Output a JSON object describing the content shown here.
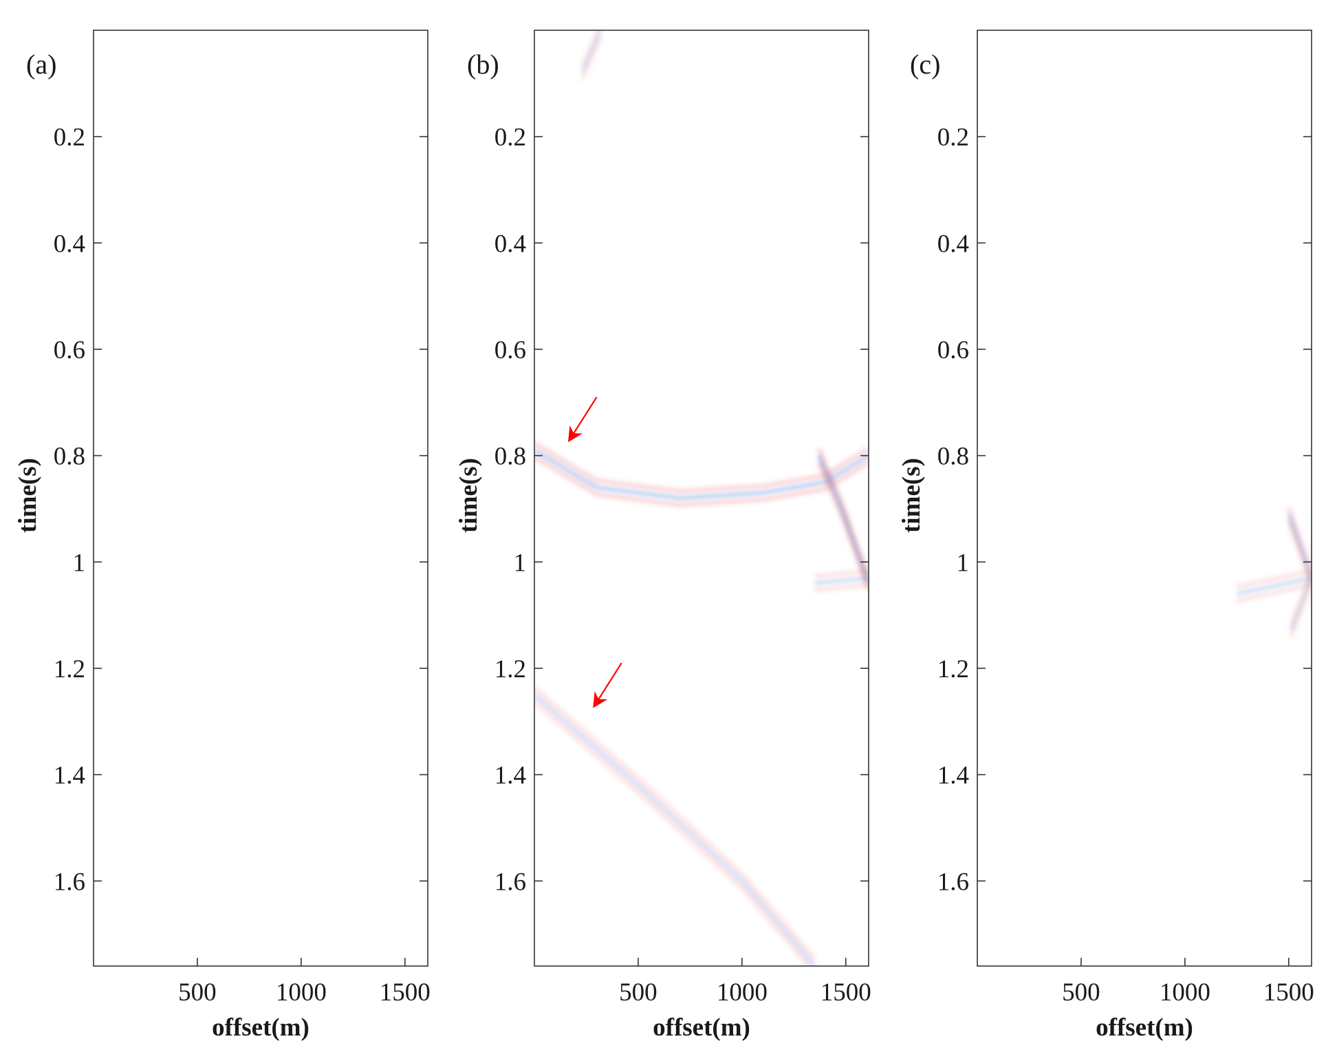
{
  "chart_data": {
    "type": "heatmap",
    "description_free": true,
    "xlabel": "offset(m)",
    "ylabel": "time(s)",
    "xlim": [
      0,
      1610
    ],
    "ylim": [
      0,
      1.76
    ],
    "xticks": [
      500,
      1000,
      1500
    ],
    "xtick_labels": [
      "500",
      "1000",
      "1500"
    ],
    "yticks": [
      0.2,
      0.4,
      0.6,
      0.8,
      1.0,
      1.2,
      1.4,
      1.6
    ],
    "ytick_labels": [
      "0.2",
      "0.4",
      "0.6",
      "0.8",
      "1",
      "1.2",
      "1.4",
      "1.6"
    ],
    "colors": {
      "positive": "#e8504a",
      "negative": "#3a7fd8",
      "arrow": "#ff0000",
      "axis": "#333333"
    },
    "panels": [
      {
        "label": "(a)",
        "events": []
      },
      {
        "label": "(b)",
        "events": [
          {
            "points": [
              [
                0,
                0.79
              ],
              [
                300,
                0.86
              ],
              [
                700,
                0.88
              ],
              [
                1100,
                0.87
              ],
              [
                1400,
                0.85
              ],
              [
                1610,
                0.8
              ]
            ],
            "strength": 0.35
          },
          {
            "points": [
              [
                1370,
                0.8
              ],
              [
                1480,
                0.9
              ],
              [
                1610,
                1.04
              ]
            ],
            "strength": 0.4
          },
          {
            "points": [
              [
                1610,
                1.03
              ],
              [
                1350,
                1.04
              ]
            ],
            "strength": 0.25
          },
          {
            "points": [
              [
                0,
                1.25
              ],
              [
                500,
                1.42
              ],
              [
                1000,
                1.6
              ],
              [
                1350,
                1.76
              ]
            ],
            "strength": 0.25
          },
          {
            "points": [
              [
                230,
                0.08
              ],
              [
                320,
                0.0
              ]
            ],
            "strength": 0.2
          }
        ],
        "arrows": [
          {
            "from": [
              300,
              0.69
            ],
            "to": [
              170,
              0.77
            ]
          },
          {
            "from": [
              420,
              1.19
            ],
            "to": [
              290,
              1.27
            ]
          }
        ]
      },
      {
        "label": "(c)",
        "events": [
          {
            "points": [
              [
                1500,
                0.91
              ],
              [
                1610,
                1.03
              ]
            ],
            "strength": 0.3
          },
          {
            "points": [
              [
                1610,
                1.03
              ],
              [
                1250,
                1.06
              ]
            ],
            "strength": 0.25
          },
          {
            "points": [
              [
                1610,
                1.03
              ],
              [
                1510,
                1.13
              ]
            ],
            "strength": 0.2
          }
        ]
      }
    ]
  }
}
